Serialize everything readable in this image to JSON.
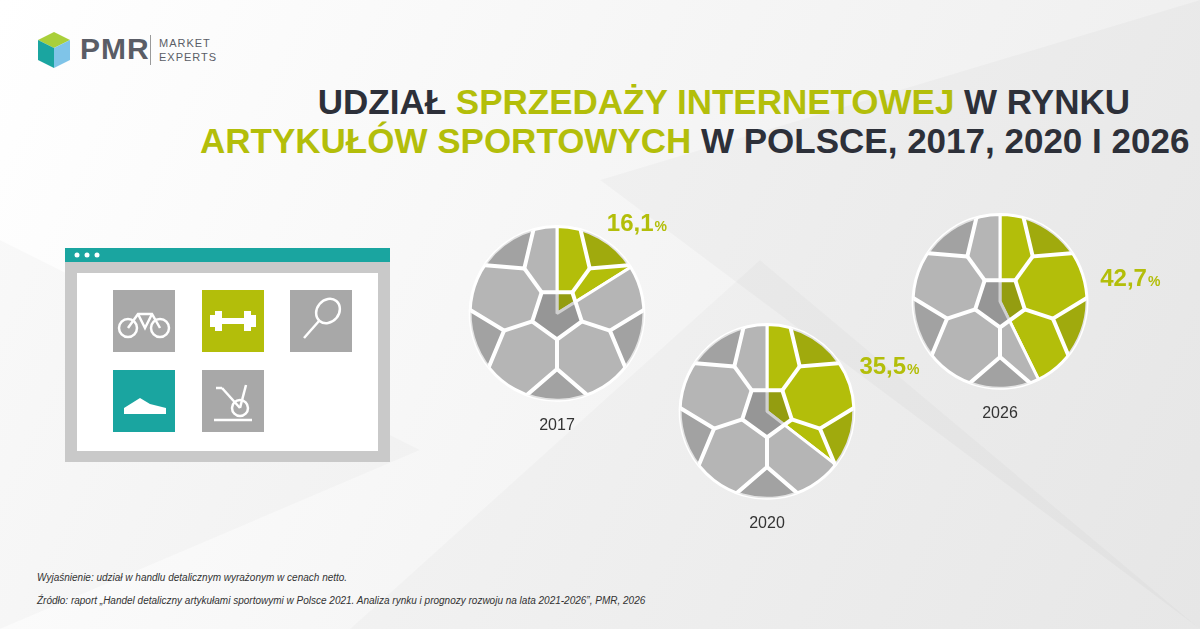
{
  "logo": {
    "name": "PMR",
    "tagline": [
      "MARKET",
      "EXPERTS"
    ]
  },
  "title": [
    [
      {
        "text": "UDZIAŁ ",
        "color": "#2d3039"
      },
      {
        "text": "SPRZEDAŻY INTERNETOWEJ",
        "color": "#b3be0a"
      },
      {
        "text": " W RYNKU",
        "color": "#2d3039"
      }
    ],
    [
      {
        "text": "ARTYKUŁÓW SPORTOWYCH",
        "color": "#b3be0a"
      },
      {
        "text": " W POLSCE, 2017, 2020 I 2026",
        "color": "#2d3039"
      }
    ]
  ],
  "chart_data": [
    {
      "type": "pie",
      "title": "2017",
      "categories": [
        null,
        null
      ],
      "values": [
        16.1,
        83.9
      ],
      "value_labels": [
        "16,1%",
        null
      ],
      "colors": [
        "#b3be0a",
        "#b5b5b5"
      ],
      "data_labels": true
    },
    {
      "type": "pie",
      "title": "2020",
      "categories": [
        null,
        null
      ],
      "values": [
        35.5,
        64.5
      ],
      "value_labels": [
        "35,5%",
        null
      ],
      "colors": [
        "#b3be0a",
        "#b5b5b5"
      ],
      "data_labels": true
    },
    {
      "type": "pie",
      "title": "2026",
      "categories": [
        null,
        null
      ],
      "values": [
        42.7,
        57.3
      ],
      "value_labels": [
        "42,7%",
        null
      ],
      "colors": [
        "#b3be0a",
        "#b5b5b5"
      ],
      "data_labels": true
    }
  ],
  "notes": [
    "Wyjaśnienie: udział w handlu detalicznym wyrażonym w cenach netto.",
    "Źródło: raport „Handel detaliczny artykułami sportowymi w Polsce 2021. Analiza rynku i prognozy rozwoju na lata 2021-2026”, PMR, 2026"
  ]
}
